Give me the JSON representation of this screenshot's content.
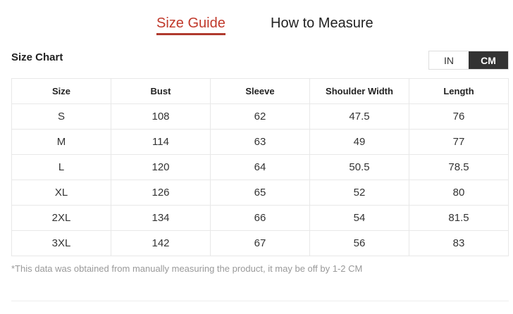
{
  "tabs": [
    {
      "label": "Size Guide",
      "active": true
    },
    {
      "label": "How to Measure",
      "active": false
    }
  ],
  "title": "Size Chart",
  "units": {
    "in": "IN",
    "cm": "CM",
    "selected": "CM"
  },
  "accent": "#c0392b",
  "table": {
    "headers": [
      "Size",
      "Bust",
      "Sleeve",
      "Shoulder Width",
      "Length"
    ],
    "rows": [
      [
        "S",
        "108",
        "62",
        "47.5",
        "76"
      ],
      [
        "M",
        "114",
        "63",
        "49",
        "77"
      ],
      [
        "L",
        "120",
        "64",
        "50.5",
        "78.5"
      ],
      [
        "XL",
        "126",
        "65",
        "52",
        "80"
      ],
      [
        "2XL",
        "134",
        "66",
        "54",
        "81.5"
      ],
      [
        "3XL",
        "142",
        "67",
        "56",
        "83"
      ]
    ]
  },
  "note": "*This data was obtained from manually measuring the product, it may be off by 1-2 CM"
}
